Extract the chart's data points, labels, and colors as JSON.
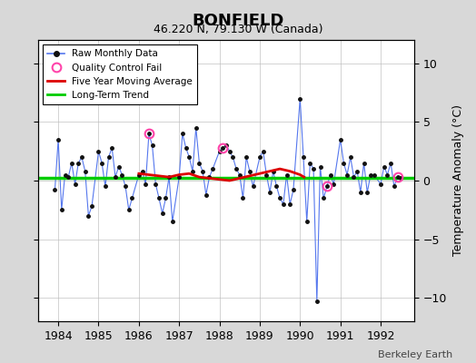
{
  "title": "BONFIELD",
  "subtitle": "46.220 N, 79.130 W (Canada)",
  "ylabel": "Temperature Anomaly (°C)",
  "credit": "Berkeley Earth",
  "background_color": "#d8d8d8",
  "plot_bg_color": "#ffffff",
  "ylim": [
    -12,
    12
  ],
  "xlim": [
    1983.5,
    1992.83
  ],
  "yticks": [
    -10,
    -5,
    0,
    5,
    10
  ],
  "xticks": [
    1984,
    1985,
    1986,
    1987,
    1988,
    1989,
    1990,
    1991,
    1992
  ],
  "raw_data": {
    "x": [
      1983.917,
      1984.0,
      1984.083,
      1984.167,
      1984.25,
      1984.333,
      1984.417,
      1984.5,
      1984.583,
      1984.667,
      1984.75,
      1984.833,
      1985.0,
      1985.083,
      1985.167,
      1985.25,
      1985.333,
      1985.417,
      1985.5,
      1985.583,
      1985.667,
      1985.75,
      1985.833,
      1986.0,
      1986.083,
      1986.167,
      1986.25,
      1986.333,
      1986.417,
      1986.5,
      1986.583,
      1986.667,
      1986.75,
      1986.833,
      1987.0,
      1987.083,
      1987.167,
      1987.25,
      1987.333,
      1987.417,
      1987.5,
      1987.583,
      1987.667,
      1987.75,
      1987.833,
      1988.0,
      1988.083,
      1988.167,
      1988.25,
      1988.333,
      1988.417,
      1988.5,
      1988.583,
      1988.667,
      1988.75,
      1988.833,
      1989.0,
      1989.083,
      1989.167,
      1989.25,
      1989.333,
      1989.417,
      1989.5,
      1989.583,
      1989.667,
      1989.75,
      1989.833,
      1990.0,
      1990.083,
      1990.167,
      1990.25,
      1990.333,
      1990.417,
      1990.5,
      1990.583,
      1990.667,
      1990.75,
      1990.833,
      1991.0,
      1991.083,
      1991.167,
      1991.25,
      1991.333,
      1991.417,
      1991.5,
      1991.583,
      1991.667,
      1991.75,
      1991.833,
      1992.0,
      1992.083,
      1992.167,
      1992.25,
      1992.333,
      1992.417,
      1992.5
    ],
    "y": [
      -0.8,
      3.5,
      -2.5,
      0.5,
      0.3,
      1.5,
      -0.3,
      1.5,
      2.0,
      0.8,
      -3.0,
      -2.2,
      2.5,
      1.5,
      -0.5,
      2.0,
      2.8,
      0.3,
      1.2,
      0.5,
      -0.5,
      -2.5,
      -1.5,
      0.5,
      0.8,
      -0.3,
      4.0,
      3.0,
      -0.3,
      -1.5,
      -2.8,
      -1.5,
      0.3,
      -3.5,
      0.3,
      4.0,
      2.8,
      2.0,
      0.8,
      4.5,
      1.5,
      0.8,
      -1.2,
      0.3,
      1.0,
      2.5,
      2.8,
      3.0,
      2.5,
      2.0,
      1.0,
      0.5,
      -1.5,
      2.0,
      0.8,
      -0.5,
      2.0,
      2.5,
      0.5,
      -1.0,
      0.8,
      -0.5,
      -1.5,
      -2.0,
      0.5,
      -2.0,
      -0.8,
      7.0,
      2.0,
      -3.5,
      1.5,
      1.0,
      -10.3,
      1.2,
      -1.5,
      -0.5,
      0.5,
      -0.3,
      3.5,
      1.5,
      0.5,
      2.0,
      0.3,
      0.8,
      -1.0,
      1.5,
      -1.0,
      0.5,
      0.5,
      -0.3,
      1.2,
      0.5,
      1.5,
      -0.5,
      0.3,
      0.2
    ]
  },
  "qc_fail_indices": [
    26,
    46,
    75,
    94
  ],
  "moving_avg": {
    "x": [
      1986.0,
      1986.25,
      1986.5,
      1986.75,
      1987.0,
      1987.25,
      1987.5,
      1987.75,
      1988.0,
      1988.25,
      1988.5,
      1988.75,
      1989.0,
      1989.25,
      1989.5,
      1989.75,
      1990.0,
      1990.1
    ],
    "y": [
      0.6,
      0.5,
      0.4,
      0.3,
      0.5,
      0.6,
      0.3,
      0.2,
      0.1,
      0.0,
      0.2,
      0.4,
      0.6,
      0.8,
      1.0,
      0.8,
      0.5,
      0.3
    ]
  },
  "long_term_trend": {
    "x": [
      1983.5,
      1992.83
    ],
    "y": [
      0.2,
      0.2
    ]
  },
  "colors": {
    "raw_line": "#5577ee",
    "raw_dot": "#111111",
    "qc_fail": "#ff44aa",
    "moving_avg": "#dd0000",
    "long_term": "#00cc00",
    "grid": "#bbbbbb"
  }
}
